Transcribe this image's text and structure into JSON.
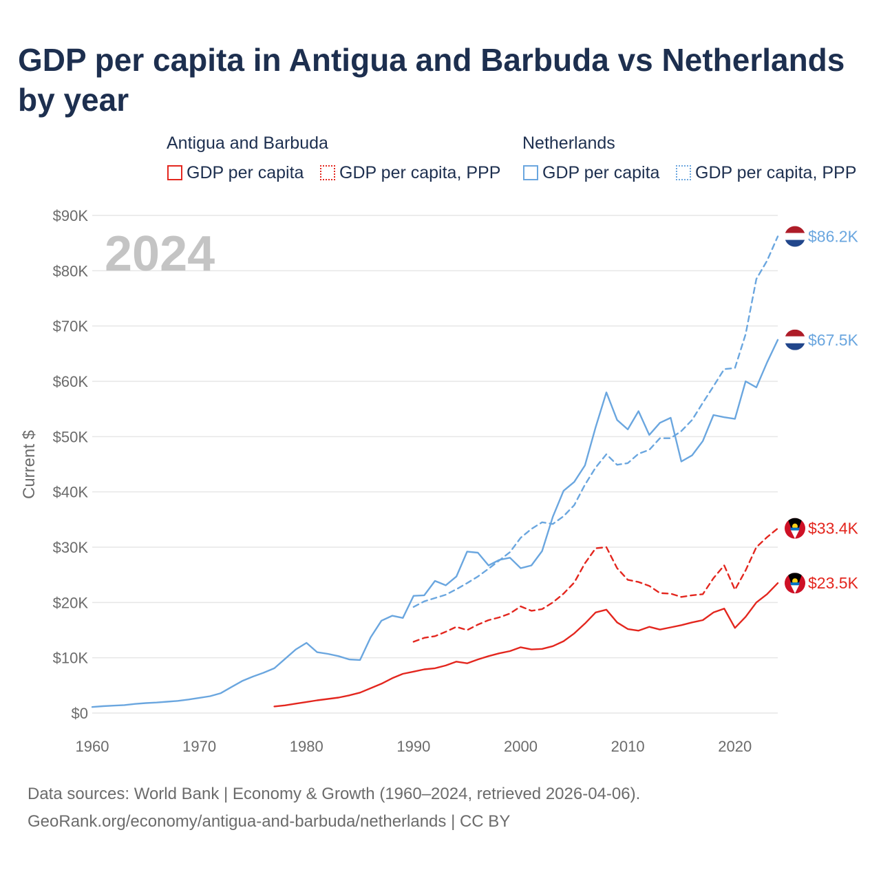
{
  "title": "GDP per capita in Antigua and Barbuda vs Netherlands by year",
  "legend": {
    "groups": [
      {
        "title": "Antigua and Barbuda",
        "items": [
          "GDP per capita",
          "GDP per capita, PPP"
        ]
      },
      {
        "title": "Netherlands",
        "items": [
          "GDP per capita",
          "GDP per capita, PPP"
        ]
      }
    ]
  },
  "colors": {
    "antigua": "#e3261e",
    "netherlands": "#6aa6df",
    "grid": "#e6e6e6",
    "axis_text": "#6b6b6b",
    "year_watermark": "#c4c4c4"
  },
  "chart_data": {
    "type": "line",
    "title": "GDP per capita in Antigua and Barbuda vs Netherlands by year",
    "xlabel": "",
    "ylabel": "Current $",
    "xlim": [
      1960,
      2024
    ],
    "ylim": [
      0,
      90000
    ],
    "x_ticks": [
      1960,
      1970,
      1980,
      1990,
      2000,
      2010,
      2020
    ],
    "x_tick_labels": [
      "1960",
      "1970",
      "1980",
      "1990",
      "2000",
      "2010",
      "2020"
    ],
    "y_ticks": [
      0,
      10000,
      20000,
      30000,
      40000,
      50000,
      60000,
      70000,
      80000,
      90000
    ],
    "y_tick_labels": [
      "$0",
      "$10K",
      "$20K",
      "$30K",
      "$40K",
      "$50K",
      "$60K",
      "$70K",
      "$80K",
      "$90K"
    ],
    "year_watermark": "2024",
    "series": [
      {
        "name": "Netherlands GDP per capita",
        "country": "Netherlands",
        "style": "solid",
        "color": "#6aa6df",
        "end_label": "$67.5K",
        "points": [
          [
            1960,
            1100
          ],
          [
            1961,
            1250
          ],
          [
            1962,
            1350
          ],
          [
            1963,
            1450
          ],
          [
            1964,
            1650
          ],
          [
            1965,
            1800
          ],
          [
            1966,
            1900
          ],
          [
            1967,
            2050
          ],
          [
            1968,
            2200
          ],
          [
            1969,
            2450
          ],
          [
            1970,
            2750
          ],
          [
            1971,
            3050
          ],
          [
            1972,
            3600
          ],
          [
            1973,
            4700
          ],
          [
            1974,
            5800
          ],
          [
            1975,
            6600
          ],
          [
            1976,
            7300
          ],
          [
            1977,
            8100
          ],
          [
            1978,
            9800
          ],
          [
            1979,
            11500
          ],
          [
            1980,
            12700
          ],
          [
            1981,
            11000
          ],
          [
            1982,
            10700
          ],
          [
            1983,
            10300
          ],
          [
            1984,
            9700
          ],
          [
            1985,
            9600
          ],
          [
            1986,
            13700
          ],
          [
            1987,
            16700
          ],
          [
            1988,
            17600
          ],
          [
            1989,
            17200
          ],
          [
            1990,
            21200
          ],
          [
            1991,
            21300
          ],
          [
            1992,
            23900
          ],
          [
            1993,
            23100
          ],
          [
            1994,
            24700
          ],
          [
            1995,
            29200
          ],
          [
            1996,
            29000
          ],
          [
            1997,
            26700
          ],
          [
            1998,
            27700
          ],
          [
            1999,
            28100
          ],
          [
            2000,
            26200
          ],
          [
            2001,
            26700
          ],
          [
            2002,
            29300
          ],
          [
            2003,
            35500
          ],
          [
            2004,
            40200
          ],
          [
            2005,
            41800
          ],
          [
            2006,
            44800
          ],
          [
            2007,
            51700
          ],
          [
            2008,
            58000
          ],
          [
            2009,
            53000
          ],
          [
            2010,
            51300
          ],
          [
            2011,
            54600
          ],
          [
            2012,
            50300
          ],
          [
            2013,
            52500
          ],
          [
            2014,
            53400
          ],
          [
            2015,
            45500
          ],
          [
            2016,
            46600
          ],
          [
            2017,
            49200
          ],
          [
            2018,
            53900
          ],
          [
            2019,
            53500
          ],
          [
            2020,
            53200
          ],
          [
            2021,
            60000
          ],
          [
            2022,
            58900
          ],
          [
            2023,
            63400
          ],
          [
            2024,
            67500
          ]
        ]
      },
      {
        "name": "Netherlands GDP per capita, PPP",
        "country": "Netherlands",
        "style": "dashed",
        "color": "#6aa6df",
        "end_label": "$86.2K",
        "points": [
          [
            1990,
            19200
          ],
          [
            1991,
            20200
          ],
          [
            1992,
            20800
          ],
          [
            1993,
            21400
          ],
          [
            1994,
            22400
          ],
          [
            1995,
            23500
          ],
          [
            1996,
            24700
          ],
          [
            1997,
            26100
          ],
          [
            1998,
            27600
          ],
          [
            1999,
            29100
          ],
          [
            2000,
            31700
          ],
          [
            2001,
            33300
          ],
          [
            2002,
            34500
          ],
          [
            2003,
            34200
          ],
          [
            2004,
            35600
          ],
          [
            2005,
            37600
          ],
          [
            2006,
            41300
          ],
          [
            2007,
            44400
          ],
          [
            2008,
            46800
          ],
          [
            2009,
            44900
          ],
          [
            2010,
            45200
          ],
          [
            2011,
            46900
          ],
          [
            2012,
            47600
          ],
          [
            2013,
            49700
          ],
          [
            2014,
            49700
          ],
          [
            2015,
            51000
          ],
          [
            2016,
            53000
          ],
          [
            2017,
            56100
          ],
          [
            2018,
            59100
          ],
          [
            2019,
            62200
          ],
          [
            2020,
            62400
          ],
          [
            2021,
            68500
          ],
          [
            2022,
            78500
          ],
          [
            2023,
            81800
          ],
          [
            2024,
            86200
          ]
        ]
      },
      {
        "name": "Antigua and Barbuda GDP per capita",
        "country": "Antigua and Barbuda",
        "style": "solid",
        "color": "#e3261e",
        "end_label": "$23.5K",
        "points": [
          [
            1977,
            1200
          ],
          [
            1978,
            1400
          ],
          [
            1979,
            1700
          ],
          [
            1980,
            2000
          ],
          [
            1981,
            2300
          ],
          [
            1982,
            2550
          ],
          [
            1983,
            2800
          ],
          [
            1984,
            3200
          ],
          [
            1985,
            3700
          ],
          [
            1986,
            4500
          ],
          [
            1987,
            5300
          ],
          [
            1988,
            6300
          ],
          [
            1989,
            7100
          ],
          [
            1990,
            7500
          ],
          [
            1991,
            7900
          ],
          [
            1992,
            8100
          ],
          [
            1993,
            8600
          ],
          [
            1994,
            9300
          ],
          [
            1995,
            9000
          ],
          [
            1996,
            9700
          ],
          [
            1997,
            10300
          ],
          [
            1998,
            10800
          ],
          [
            1999,
            11200
          ],
          [
            2000,
            11900
          ],
          [
            2001,
            11500
          ],
          [
            2002,
            11600
          ],
          [
            2003,
            12100
          ],
          [
            2004,
            13000
          ],
          [
            2005,
            14400
          ],
          [
            2006,
            16200
          ],
          [
            2007,
            18200
          ],
          [
            2008,
            18700
          ],
          [
            2009,
            16400
          ],
          [
            2010,
            15200
          ],
          [
            2011,
            14900
          ],
          [
            2012,
            15600
          ],
          [
            2013,
            15100
          ],
          [
            2014,
            15500
          ],
          [
            2015,
            15900
          ],
          [
            2016,
            16400
          ],
          [
            2017,
            16800
          ],
          [
            2018,
            18200
          ],
          [
            2019,
            18900
          ],
          [
            2020,
            15400
          ],
          [
            2021,
            17400
          ],
          [
            2022,
            20000
          ],
          [
            2023,
            21500
          ],
          [
            2024,
            23500
          ]
        ]
      },
      {
        "name": "Antigua and Barbuda GDP per capita, PPP",
        "country": "Antigua and Barbuda",
        "style": "dashed",
        "color": "#e3261e",
        "end_label": "$33.4K",
        "points": [
          [
            1990,
            12900
          ],
          [
            1991,
            13600
          ],
          [
            1992,
            13900
          ],
          [
            1993,
            14700
          ],
          [
            1994,
            15600
          ],
          [
            1995,
            15000
          ],
          [
            1996,
            16000
          ],
          [
            1997,
            16800
          ],
          [
            1998,
            17300
          ],
          [
            1999,
            18000
          ],
          [
            2000,
            19300
          ],
          [
            2001,
            18500
          ],
          [
            2002,
            18800
          ],
          [
            2003,
            20000
          ],
          [
            2004,
            21600
          ],
          [
            2005,
            23600
          ],
          [
            2006,
            27100
          ],
          [
            2007,
            29800
          ],
          [
            2008,
            30000
          ],
          [
            2009,
            26200
          ],
          [
            2010,
            24100
          ],
          [
            2011,
            23700
          ],
          [
            2012,
            23000
          ],
          [
            2013,
            21700
          ],
          [
            2014,
            21600
          ],
          [
            2015,
            21000
          ],
          [
            2016,
            21300
          ],
          [
            2017,
            21500
          ],
          [
            2018,
            24400
          ],
          [
            2019,
            26700
          ],
          [
            2020,
            22300
          ],
          [
            2021,
            25800
          ],
          [
            2022,
            30000
          ],
          [
            2023,
            31800
          ],
          [
            2024,
            33400
          ]
        ]
      }
    ]
  },
  "footer": {
    "line1": "Data sources: World Bank | Economy & Growth (1960–2024, retrieved 2026-04-06).",
    "line2": "GeoRank.org/economy/antigua-and-barbuda/netherlands | CC BY"
  }
}
